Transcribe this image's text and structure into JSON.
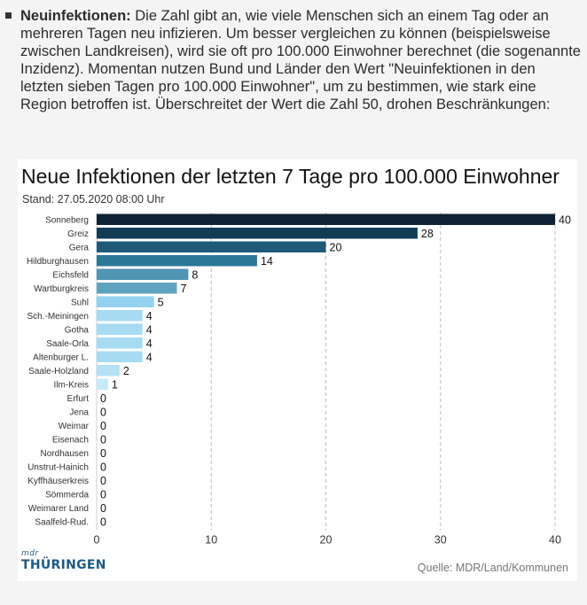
{
  "intro": {
    "term": "Neuinfektionen:",
    "lines": [
      " Die Zahl gibt an, wie viele Menschen sich an einem Tag oder an",
      "mehreren Tagen neu infizieren. Um besser vergleichen zu können (beispielsweise",
      "zwischen Landkreisen), wird sie oft pro 100.000 Einwohner berechnet (die sogenannte",
      "Inzidenz). Momentan nutzen Bund und Länder den Wert \"Neuinfektionen in den",
      "letzten sieben Tagen pro 100.000 Einwohner\", um zu bestimmen, wie stark eine",
      "Region betroffen ist. Überschreitet der Wert die Zahl 50, drohen Beschränkungen:"
    ]
  },
  "chart_data": {
    "type": "bar",
    "orientation": "horizontal",
    "title": "Neue Infektionen der letzten 7 Tage pro 100.000 Einwohner",
    "subtitle": "Stand: 27.05.2020 08:00 Uhr",
    "categories": [
      "Sonneberg",
      "Greiz",
      "Gera",
      "Hildburghausen",
      "Eichsfeld",
      "Wartburgkreis",
      "Suhl",
      "Sch.-Meiningen",
      "Gotha",
      "Saale-Orla",
      "Altenburger L.",
      "Saale-Holzland",
      "Ilm-Kreis",
      "Erfurt",
      "Jena",
      "Weimar",
      "Eisenach",
      "Nordhausen",
      "Unstrut-Hainich",
      "Kyffhäuserkreis",
      "Sömmerda",
      "Weimarer Land",
      "Saalfeld-Rud."
    ],
    "values": [
      40,
      28,
      20,
      14,
      8,
      7,
      5,
      4,
      4,
      4,
      4,
      2,
      1,
      0,
      0,
      0,
      0,
      0,
      0,
      0,
      0,
      0,
      0
    ],
    "bar_colors": [
      "#0d2235",
      "#123c55",
      "#1d5a78",
      "#2c7797",
      "#4f95b4",
      "#5fa3be",
      "#92d2ee",
      "#a6dbf2",
      "#a6dbf2",
      "#a6dbf2",
      "#a6dbf2",
      "#b5e1f4",
      "#c8e9f7",
      "#d6eefa",
      "#d6eefa",
      "#d6eefa",
      "#d6eefa",
      "#d6eefa",
      "#d6eefa",
      "#d6eefa",
      "#d6eefa",
      "#d6eefa",
      "#d6eefa"
    ],
    "xlim": [
      0,
      40
    ],
    "xticks": [
      0,
      10,
      20,
      30,
      40
    ],
    "grid": "vertical dashed"
  },
  "footer": {
    "logo_small": "mdr",
    "logo_big": "THÜRINGEN",
    "source": "Quelle: MDR/Land/Kommunen"
  }
}
